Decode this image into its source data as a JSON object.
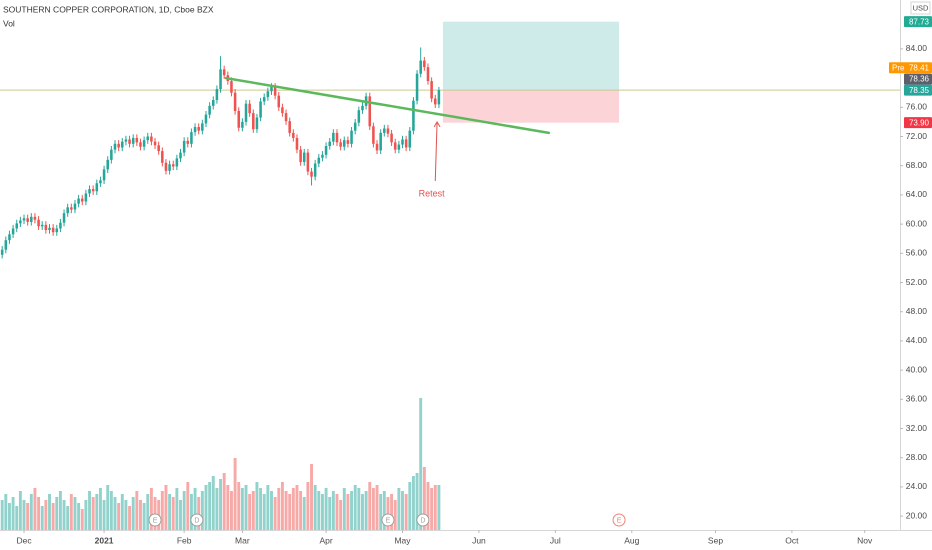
{
  "chart_data": {
    "type": "candlestick",
    "title": "SOUTHERN COPPER CORPORATION, 1D, Cboe BZX",
    "volume_label": "Vol",
    "currency": "USD",
    "up_color": "#26a69a",
    "down_color": "#ef5350",
    "volume_up_color": "#92d2cc",
    "volume_down_color": "#f7a9a7",
    "xlim": [
      -6.6,
      240.7
    ],
    "ylim": [
      18.1,
      90.7
    ],
    "xticks": [
      {
        "value": 0,
        "label": "Dec"
      },
      {
        "value": 22,
        "label": "2021"
      },
      {
        "value": 44,
        "label": "Feb"
      },
      {
        "value": 60,
        "label": "Mar"
      },
      {
        "value": 83,
        "label": "Apr"
      },
      {
        "value": 104,
        "label": "May"
      },
      {
        "value": 125,
        "label": "Jun"
      },
      {
        "value": 146,
        "label": "Jul"
      },
      {
        "value": 167,
        "label": "Aug"
      },
      {
        "value": 190,
        "label": "Sep"
      },
      {
        "value": 211,
        "label": "Oct"
      },
      {
        "value": 231,
        "label": "Nov"
      }
    ],
    "yticks": [
      {
        "value": 84,
        "label": "84.00"
      },
      {
        "value": 76,
        "label": "76.00"
      },
      {
        "value": 72,
        "label": "72.00"
      },
      {
        "value": 68,
        "label": "68.00"
      },
      {
        "value": 64,
        "label": "64.00"
      },
      {
        "value": 60,
        "label": "60.00"
      },
      {
        "value": 56,
        "label": "56.00"
      },
      {
        "value": 52,
        "label": "52.00"
      },
      {
        "value": 48,
        "label": "48.00"
      },
      {
        "value": 44,
        "label": "44.00"
      },
      {
        "value": 40,
        "label": "40.00"
      },
      {
        "value": 36,
        "label": "36.00"
      },
      {
        "value": 32,
        "label": "32.00"
      },
      {
        "value": 28,
        "label": "28.00"
      },
      {
        "value": 24,
        "label": "24.00"
      },
      {
        "value": 20,
        "label": "20.00"
      }
    ],
    "x": [
      -6,
      -5,
      -4,
      -3,
      -2,
      -1,
      0,
      1,
      2,
      3,
      4,
      5,
      6,
      7,
      8,
      9,
      10,
      11,
      12,
      13,
      14,
      15,
      16,
      17,
      18,
      19,
      20,
      21,
      22,
      23,
      24,
      25,
      26,
      27,
      28,
      29,
      30,
      31,
      32,
      33,
      34,
      35,
      36,
      37,
      38,
      39,
      40,
      41,
      42,
      43,
      44,
      45,
      46,
      47,
      48,
      49,
      50,
      51,
      52,
      53,
      54,
      55,
      56,
      57,
      58,
      59,
      60,
      61,
      62,
      63,
      64,
      65,
      66,
      67,
      68,
      69,
      70,
      71,
      72,
      73,
      74,
      75,
      76,
      77,
      78,
      79,
      80,
      81,
      82,
      83,
      84,
      85,
      86,
      87,
      88,
      89,
      90,
      91,
      92,
      93,
      94,
      95,
      96,
      97,
      98,
      99,
      100,
      101,
      102,
      103,
      104,
      105,
      106,
      107,
      108,
      109,
      110,
      111,
      112,
      113,
      114
    ],
    "open": [
      55.8,
      56.5,
      57.8,
      58.6,
      59.4,
      60.1,
      60.5,
      60.8,
      60.3,
      61.0,
      60.6,
      59.7,
      59.9,
      59.2,
      59.5,
      58.9,
      59.4,
      60.2,
      61.5,
      62.3,
      62.0,
      62.8,
      63.5,
      63.1,
      64.2,
      64.8,
      64.5,
      65.6,
      66.0,
      67.5,
      68.8,
      70.2,
      71.0,
      70.5,
      71.3,
      71.6,
      71.0,
      71.8,
      71.2,
      70.6,
      71.5,
      72.0,
      71.3,
      70.8,
      70.0,
      68.4,
      67.3,
      68.2,
      67.9,
      69.0,
      69.8,
      71.4,
      71.0,
      72.6,
      73.3,
      72.8,
      73.8,
      75.0,
      76.2,
      77.0,
      78.5,
      81.2,
      80.4,
      79.6,
      78.0,
      75.5,
      73.2,
      74.0,
      76.5,
      75.2,
      73.0,
      74.6,
      76.8,
      77.4,
      78.2,
      78.8,
      77.6,
      76.0,
      75.2,
      74.1,
      72.5,
      71.8,
      70.2,
      68.5,
      69.8,
      67.2,
      66.5,
      68.3,
      69.1,
      69.5,
      70.7,
      71.3,
      72.5,
      71.2,
      70.6,
      71.5,
      71.0,
      72.8,
      73.9,
      75.6,
      76.2,
      77.5,
      73.4,
      71.0,
      70.1,
      72.5,
      73.1,
      72.4,
      71.2,
      70.2,
      70.9,
      71.6,
      70.5,
      72.8,
      76.9,
      80.6,
      82.4,
      81.5,
      79.6,
      77.2,
      76.4
    ],
    "high": [
      57.0,
      58.3,
      59.1,
      59.9,
      60.6,
      61.0,
      61.3,
      61.3,
      61.5,
      61.5,
      61.1,
      60.4,
      60.4,
      60.0,
      60.0,
      59.9,
      60.7,
      62.0,
      62.8,
      62.8,
      63.3,
      64.0,
      64.0,
      64.7,
      65.3,
      65.3,
      66.1,
      66.5,
      68.0,
      69.3,
      70.7,
      71.5,
      71.5,
      71.8,
      72.1,
      72.1,
      72.3,
      72.3,
      71.7,
      72.0,
      72.5,
      72.5,
      71.8,
      71.3,
      70.5,
      68.9,
      68.7,
      68.7,
      69.5,
      70.3,
      71.9,
      71.9,
      73.1,
      73.8,
      73.8,
      74.3,
      75.5,
      76.7,
      77.5,
      79.0,
      83.0,
      81.7,
      80.9,
      80.1,
      78.5,
      76.0,
      74.5,
      77.0,
      77.0,
      75.7,
      75.1,
      77.3,
      77.9,
      78.7,
      79.3,
      79.3,
      78.1,
      76.5,
      75.7,
      74.6,
      73.0,
      72.3,
      70.7,
      70.3,
      70.3,
      67.7,
      68.8,
      69.6,
      70.0,
      71.2,
      71.8,
      73.0,
      73.0,
      71.7,
      72.0,
      72.0,
      73.3,
      74.4,
      76.1,
      76.7,
      78.0,
      78.0,
      73.9,
      71.5,
      73.0,
      73.6,
      73.6,
      72.9,
      71.7,
      71.4,
      72.1,
      72.1,
      73.3,
      77.4,
      81.1,
      84.2,
      82.9,
      82.0,
      80.1,
      77.7,
      78.8
    ],
    "low": [
      55.3,
      56.0,
      57.3,
      58.1,
      58.9,
      59.6,
      60.0,
      59.8,
      59.8,
      60.1,
      59.2,
      59.2,
      58.7,
      58.7,
      58.4,
      58.4,
      58.9,
      59.7,
      61.0,
      61.5,
      61.5,
      62.3,
      62.6,
      62.6,
      63.7,
      64.0,
      64.0,
      65.1,
      65.5,
      67.0,
      68.3,
      69.7,
      70.0,
      70.0,
      70.8,
      70.5,
      70.5,
      70.7,
      70.1,
      70.1,
      71.0,
      70.8,
      70.3,
      69.5,
      67.9,
      66.8,
      66.8,
      67.4,
      67.4,
      68.5,
      69.3,
      70.5,
      70.5,
      72.1,
      72.3,
      72.3,
      73.3,
      74.5,
      75.7,
      76.5,
      78.0,
      79.9,
      79.1,
      77.5,
      75.0,
      72.7,
      72.7,
      73.5,
      74.7,
      72.5,
      72.5,
      74.1,
      76.3,
      76.9,
      77.7,
      77.1,
      75.5,
      74.7,
      73.6,
      72.0,
      71.3,
      69.7,
      68.0,
      68.0,
      66.7,
      65.3,
      66.0,
      67.8,
      68.6,
      69.0,
      70.2,
      70.8,
      70.7,
      70.1,
      70.1,
      70.5,
      70.5,
      72.3,
      73.4,
      75.1,
      75.7,
      72.9,
      70.5,
      69.6,
      69.6,
      72.0,
      71.9,
      70.7,
      69.7,
      69.7,
      70.4,
      70.0,
      70.0,
      72.3,
      76.4,
      80.1,
      81.0,
      79.1,
      76.7,
      75.9,
      75.9
    ],
    "close": [
      56.5,
      57.8,
      58.6,
      59.4,
      60.1,
      60.5,
      60.8,
      60.3,
      61.0,
      60.6,
      59.7,
      59.9,
      59.2,
      59.5,
      58.9,
      59.4,
      60.2,
      61.5,
      62.3,
      62.0,
      62.8,
      63.5,
      63.1,
      64.2,
      64.8,
      64.5,
      65.6,
      66.0,
      67.5,
      68.8,
      70.2,
      71.0,
      70.5,
      71.3,
      71.6,
      71.0,
      71.8,
      71.2,
      70.6,
      71.5,
      72.0,
      71.3,
      70.8,
      70.0,
      68.4,
      67.3,
      68.2,
      67.9,
      69.0,
      69.8,
      71.4,
      71.0,
      72.6,
      73.3,
      72.8,
      73.8,
      75.0,
      76.2,
      77.0,
      78.5,
      81.2,
      80.4,
      79.6,
      78.0,
      75.5,
      73.2,
      74.0,
      76.5,
      75.2,
      73.0,
      74.6,
      76.8,
      77.4,
      78.2,
      78.8,
      77.6,
      76.0,
      75.2,
      74.1,
      72.5,
      71.8,
      70.2,
      68.5,
      69.8,
      67.2,
      66.5,
      68.3,
      69.1,
      69.5,
      70.7,
      71.3,
      72.5,
      71.2,
      70.6,
      71.5,
      71.0,
      72.8,
      73.9,
      75.6,
      76.2,
      77.5,
      73.4,
      71.0,
      70.1,
      72.5,
      73.1,
      72.4,
      71.2,
      70.2,
      70.9,
      71.6,
      70.5,
      72.8,
      76.9,
      80.6,
      82.4,
      81.5,
      79.6,
      77.2,
      76.4,
      78.35
    ],
    "volume": [
      1.0,
      1.2,
      0.9,
      1.1,
      0.8,
      1.3,
      1.0,
      0.9,
      1.2,
      1.4,
      1.1,
      0.8,
      1.0,
      1.2,
      0.9,
      1.1,
      1.3,
      1.0,
      0.8,
      1.2,
      1.1,
      0.9,
      0.7,
      1.0,
      1.3,
      1.1,
      1.2,
      1.4,
      1.0,
      1.5,
      1.3,
      1.1,
      0.9,
      1.2,
      1.0,
      0.8,
      1.1,
      1.3,
      1.0,
      0.9,
      1.2,
      1.4,
      1.1,
      1.0,
      1.3,
      1.5,
      1.2,
      1.1,
      1.4,
      1.0,
      1.3,
      1.6,
      1.2,
      1.4,
      1.1,
      1.3,
      1.5,
      1.6,
      1.8,
      1.4,
      1.7,
      1.9,
      1.5,
      1.3,
      2.4,
      1.6,
      1.4,
      1.5,
      1.2,
      1.3,
      1.6,
      1.4,
      1.2,
      1.5,
      1.3,
      1.1,
      1.4,
      1.6,
      1.3,
      1.2,
      1.4,
      1.5,
      1.3,
      1.1,
      1.6,
      2.2,
      1.5,
      1.3,
      1.2,
      1.4,
      1.1,
      1.3,
      1.2,
      1.0,
      1.4,
      1.2,
      1.3,
      1.5,
      1.4,
      1.2,
      1.3,
      1.6,
      1.4,
      1.5,
      1.2,
      1.3,
      1.1,
      1.2,
      1.0,
      1.4,
      1.3,
      1.2,
      1.6,
      1.8,
      1.9,
      4.4,
      2.1,
      1.6,
      1.4,
      1.5,
      1.5
    ],
    "trendline": {
      "points": [
        [
          55.5,
          80.0
        ],
        [
          144.2,
          72.5
        ]
      ],
      "color": "#5cb85c"
    },
    "position": {
      "x": [
        115.1,
        163.5
      ],
      "entry": 78.35,
      "target": 87.73,
      "stop": 73.9,
      "profit_color": "rgba(38,166,154,0.22)",
      "loss_color": "rgba(242,54,69,0.22)"
    },
    "price_labels": [
      {
        "value": 87.73,
        "label": "87.73",
        "color": "#22ab94"
      },
      {
        "prefix": "Pre",
        "value": 78.41,
        "label": "78.41",
        "color": "#ff9800"
      },
      {
        "value": 78.36,
        "label": "78.36",
        "color": "#5d606b"
      },
      {
        "value": 78.35,
        "label": "78.35",
        "color": "#26a69a",
        "line_color": "#c9c98f"
      },
      {
        "value": 73.9,
        "label": "73.90",
        "color": "#f23645"
      }
    ],
    "annotation": {
      "text": "Retest",
      "x": 112,
      "y": 64.1,
      "arrow": [
        [
          113,
          65.9
        ],
        [
          113.5,
          74.0
        ]
      ],
      "color": "#e0524f"
    },
    "events": [
      {
        "x": 36,
        "label": "E",
        "color": "#9e9e9e"
      },
      {
        "x": 47.5,
        "label": "D",
        "color": "#9e9e9e"
      },
      {
        "x": 100,
        "label": "E",
        "color": "#9e9e9e"
      },
      {
        "x": 109.6,
        "label": "D",
        "color": "#9e9e9e"
      },
      {
        "x": 163.5,
        "label": "E",
        "color": "#f0827b"
      }
    ]
  }
}
